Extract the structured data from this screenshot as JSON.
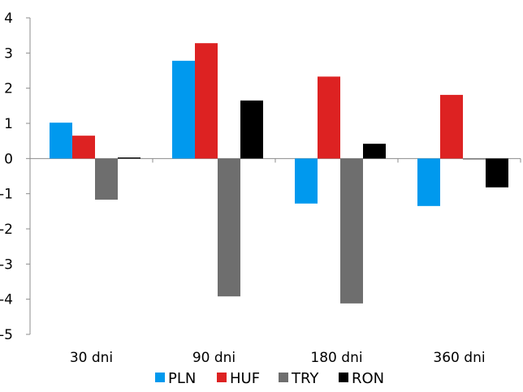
{
  "chart_data": {
    "type": "bar",
    "title": "",
    "xlabel": "",
    "ylabel": "",
    "categories": [
      "30 dni",
      "90 dni",
      "180 dni",
      "360 dni"
    ],
    "series": [
      {
        "name": "PLN",
        "color": "#0099ee",
        "values": [
          1.02,
          2.78,
          -1.28,
          -1.35
        ]
      },
      {
        "name": "HUF",
        "color": "#dd2222",
        "values": [
          0.65,
          3.28,
          2.33,
          1.81
        ]
      },
      {
        "name": "TRY",
        "color": "#6e6e6e",
        "values": [
          -1.17,
          -3.92,
          -4.12,
          -0.02
        ]
      },
      {
        "name": "RON",
        "color": "#000000",
        "values": [
          0.03,
          1.65,
          0.42,
          -0.82
        ]
      }
    ],
    "ylim": [
      -5,
      4
    ],
    "yticks": [
      4,
      3,
      2,
      1,
      0,
      -1,
      -2,
      -3,
      -4,
      -5
    ],
    "ytick_labels": [
      "4",
      "3",
      "2",
      "1",
      "0",
      "-1",
      "-2",
      "-3",
      "-4",
      "-5"
    ],
    "grid": false,
    "legend_position": "bottom"
  }
}
